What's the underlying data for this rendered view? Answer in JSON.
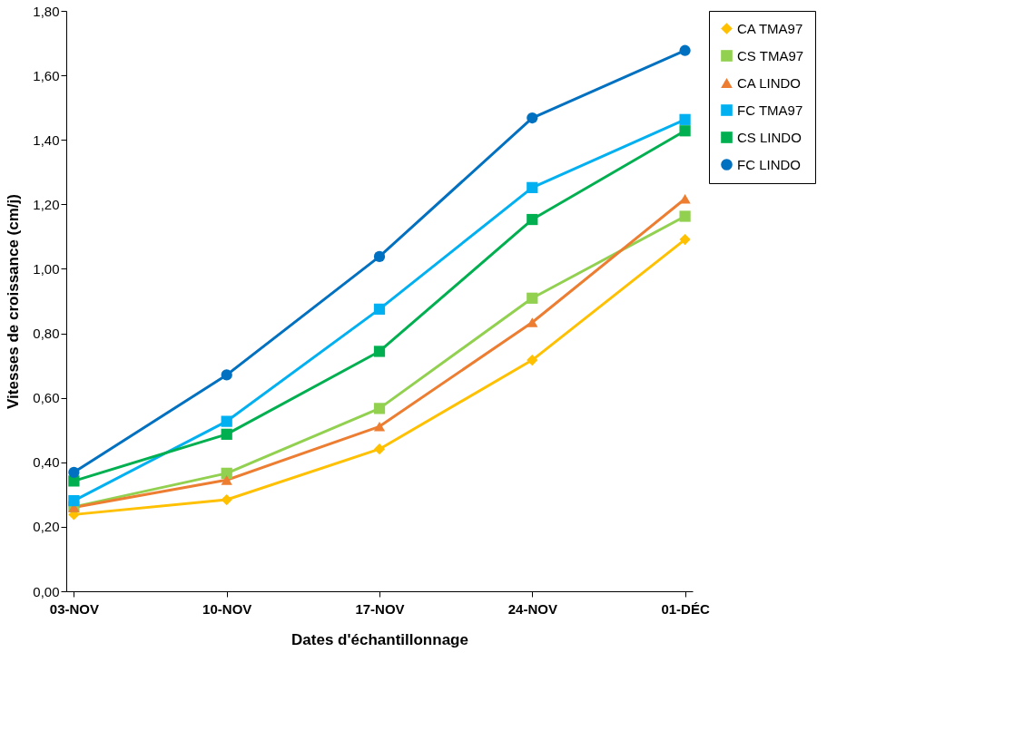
{
  "chart_data": {
    "type": "line",
    "xlabel": "Dates d'échantillonnage",
    "ylabel": "Vitesses de croissance (cm/j)",
    "categories": [
      "03-NOV",
      "10-NOV",
      "17-NOV",
      "24-NOV",
      "01-DÉC"
    ],
    "ylim": [
      0,
      1.8
    ],
    "yticks": [
      {
        "value": 0,
        "label": "0,00"
      },
      {
        "value": 0.2,
        "label": "0,20"
      },
      {
        "value": 0.4,
        "label": "0,40"
      },
      {
        "value": 0.6,
        "label": "0,60"
      },
      {
        "value": 0.8,
        "label": "0,80"
      },
      {
        "value": 1.0,
        "label": "1,00"
      },
      {
        "value": 1.2,
        "label": "1,20"
      },
      {
        "value": 1.4,
        "label": "1,40"
      },
      {
        "value": 1.6,
        "label": "1,60"
      },
      {
        "value": 1.8,
        "label": "1,80"
      }
    ],
    "grid": false,
    "legend": "right",
    "line_style": "solid",
    "series": [
      {
        "name": "CA TMA97",
        "color": "#ffc000",
        "marker": "diamond",
        "values": [
          0.238,
          0.284,
          0.441,
          0.717,
          1.091
        ]
      },
      {
        "name": "CS TMA97",
        "color": "#92d050",
        "marker": "square",
        "values": [
          0.262,
          0.366,
          0.567,
          0.909,
          1.163
        ]
      },
      {
        "name": "CA LINDO",
        "color": "#ed7d31",
        "marker": "triangle",
        "values": [
          0.26,
          0.345,
          0.511,
          0.834,
          1.217
        ]
      },
      {
        "name": "FC TMA97",
        "color": "#00b0f0",
        "marker": "square",
        "values": [
          0.281,
          0.527,
          0.875,
          1.252,
          1.463
        ]
      },
      {
        "name": "CS LINDO",
        "color": "#00b050",
        "marker": "square",
        "values": [
          0.342,
          0.487,
          0.744,
          1.153,
          1.428
        ]
      },
      {
        "name": "FC LINDO",
        "color": "#0070c0",
        "marker": "circle",
        "values": [
          0.369,
          0.671,
          1.038,
          1.468,
          1.677
        ]
      }
    ]
  }
}
